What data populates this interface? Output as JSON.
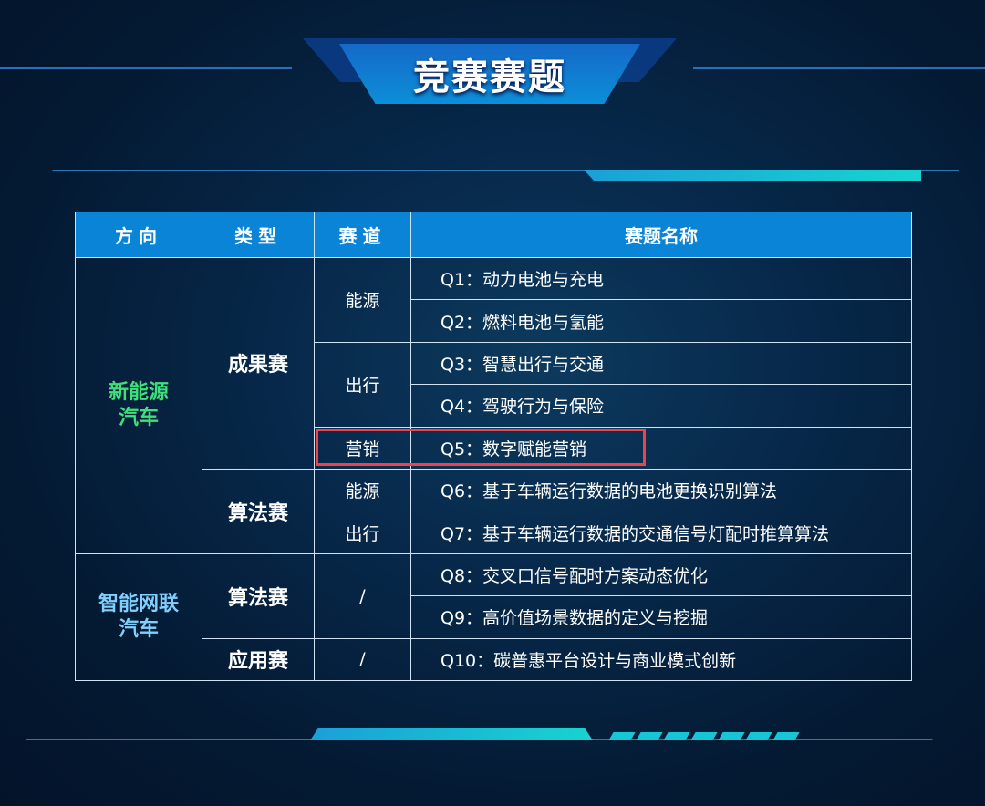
{
  "title": "竞赛赛题",
  "headers": [
    "方向",
    "类型",
    "赛道",
    "赛题名称"
  ],
  "directions": [
    "新能源\n汽车",
    "智能网联\n汽车"
  ],
  "types": [
    "成果赛",
    "算法赛",
    "算法赛",
    "应用赛"
  ],
  "tracks": [
    "能源",
    "出行",
    "营销",
    "能源",
    "出行",
    "/",
    "/"
  ],
  "topics": [
    "Q1：动力电池与充电",
    "Q2：燃料电池与氢能",
    "Q3：智慧出行与交通",
    "Q4：驾驶行为与保险",
    "Q5：数字赋能营销",
    "Q6：基于车辆运行数据的电池更换识别算法",
    "Q7：基于车辆运行数据的交通信号灯配时推算算法",
    "Q8：交叉口信号配时方案动态优化",
    "Q9：高价值场景数据的定义与挖掘",
    "Q10：碳普惠平台设计与商业模式创新"
  ],
  "colors": {
    "header": "#0a84d6",
    "highlight": "#f0424a",
    "green_text": "#3fe07a",
    "blue_text": "#7fd0ff"
  }
}
